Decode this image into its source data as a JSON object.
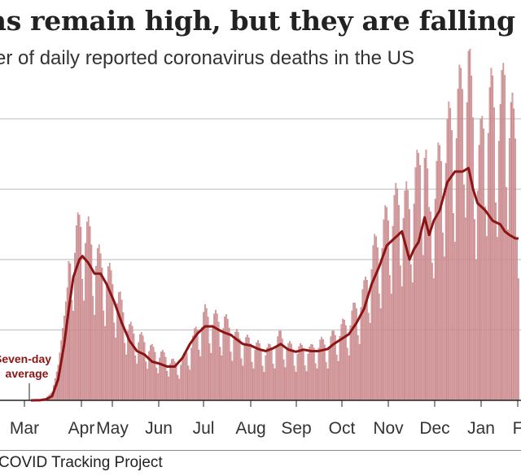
{
  "header": {
    "title": "hs remain high, but they are falling",
    "subtitle": "er of daily reported coronavirus deaths in the US"
  },
  "footer": {
    "source": "COVID Tracking Project"
  },
  "colors": {
    "bars": "#d9a3a5",
    "bar_edge": "#b86a6e",
    "average_line": "#8c1414",
    "grid": "#c8c8c8",
    "axis": "#222222"
  },
  "chart_data": {
    "type": "bar",
    "title": "",
    "xlabel": "",
    "ylabel": "",
    "ylim": [
      0,
      5000
    ],
    "grid": true,
    "y_gridlines": [
      0,
      1000,
      2000,
      3000,
      4000
    ],
    "x_tick_labels": [
      "Mar",
      "Apr",
      "May",
      "Jun",
      "Jul",
      "Aug",
      "Sep",
      "Oct",
      "Nov",
      "Dec",
      "Jan",
      "F"
    ],
    "annotations": [
      {
        "text_lines": [
          "Seven-day",
          "average"
        ]
      }
    ],
    "anchors": {
      "days": [
        0,
        6,
        10,
        14,
        18,
        22,
        25,
        28,
        32,
        34,
        38,
        42,
        46,
        50,
        55,
        60,
        65,
        70,
        75,
        80,
        85,
        90,
        95,
        100,
        105,
        110,
        115,
        120,
        125,
        128,
        132,
        135,
        140,
        145,
        150,
        155,
        160,
        165,
        170,
        175,
        180,
        185,
        190,
        196,
        200,
        205,
        210,
        215,
        220,
        225,
        230,
        235,
        240,
        245,
        250,
        253,
        256,
        260,
        263,
        266,
        270,
        275,
        280,
        285,
        289,
        292,
        295,
        300,
        305,
        310,
        313,
        316,
        320,
        322
      ],
      "series": [
        {
          "name": "Daily deaths",
          "values": [
            0,
            2,
            30,
            120,
            500,
            1200,
            1800,
            2200,
            2400,
            2500,
            2300,
            2100,
            1900,
            1800,
            1600,
            1300,
            1000,
            900,
            820,
            700,
            650,
            600,
            500,
            550,
            750,
            1000,
            1200,
            1150,
            1100,
            1100,
            1000,
            900,
            850,
            800,
            750,
            680,
            750,
            900,
            750,
            700,
            720,
            700,
            800,
            780,
            900,
            1000,
            1100,
            1300,
            1500,
            2000,
            2200,
            2500,
            2700,
            2800,
            2700,
            3000,
            3200,
            3700,
            2500,
            3000,
            3300,
            3700,
            3900,
            4400,
            4600,
            4000,
            3200,
            4000,
            4200,
            3900,
            4600,
            4000,
            3700,
            3000
          ]
        },
        {
          "name": "Seven-day average",
          "values": [
            0,
            2,
            15,
            60,
            300,
            800,
            1300,
            1750,
            2000,
            2050,
            1950,
            1800,
            1800,
            1650,
            1400,
            1100,
            850,
            700,
            650,
            550,
            520,
            480,
            480,
            600,
            800,
            950,
            1050,
            1050,
            990,
            960,
            930,
            880,
            800,
            780,
            730,
            700,
            740,
            800,
            720,
            690,
            720,
            700,
            700,
            730,
            800,
            870,
            940,
            1100,
            1300,
            1650,
            1900,
            2200,
            2300,
            2400,
            2000,
            2150,
            2250,
            2600,
            2350,
            2550,
            2700,
            3100,
            3250,
            3250,
            3300,
            3000,
            2800,
            2700,
            2550,
            2500,
            2400,
            2350,
            2300,
            2300
          ]
        }
      ]
    }
  }
}
